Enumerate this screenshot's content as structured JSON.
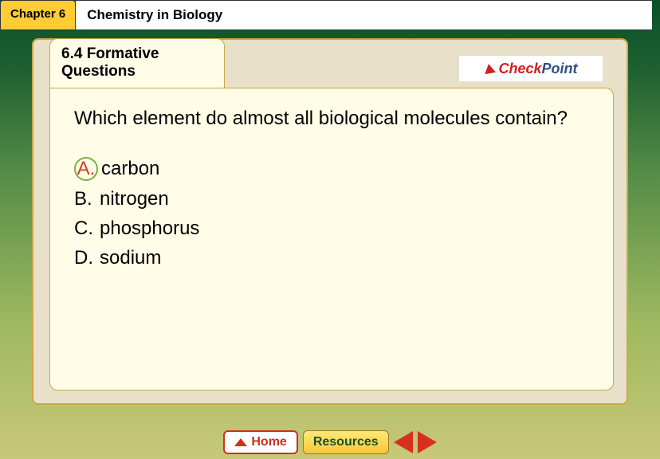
{
  "header": {
    "chapter_label": "Chapter 6",
    "title": "Chemistry in Biology"
  },
  "tab": {
    "section": "6.4 Formative Questions"
  },
  "checkpoint": {
    "check": "Check",
    "point": "Point"
  },
  "question": "Which element do almost all biological molecules contain?",
  "answers": [
    {
      "letter": "A.",
      "text": "carbon",
      "highlighted": true
    },
    {
      "letter": "B.",
      "text": "nitrogen",
      "highlighted": false
    },
    {
      "letter": "C.",
      "text": "phosphorus",
      "highlighted": false
    },
    {
      "letter": "D.",
      "text": "sodium",
      "highlighted": false
    }
  ],
  "footer": {
    "home": "Home",
    "resources": "Resources"
  },
  "colors": {
    "chapter_tab_bg": "#ffcc33",
    "folder_bg": "#fffde8",
    "frame_bg": "#e8e0c8",
    "highlight_ring": "#7ab040",
    "highlight_text": "#d04028",
    "arrow": "#d83020"
  }
}
